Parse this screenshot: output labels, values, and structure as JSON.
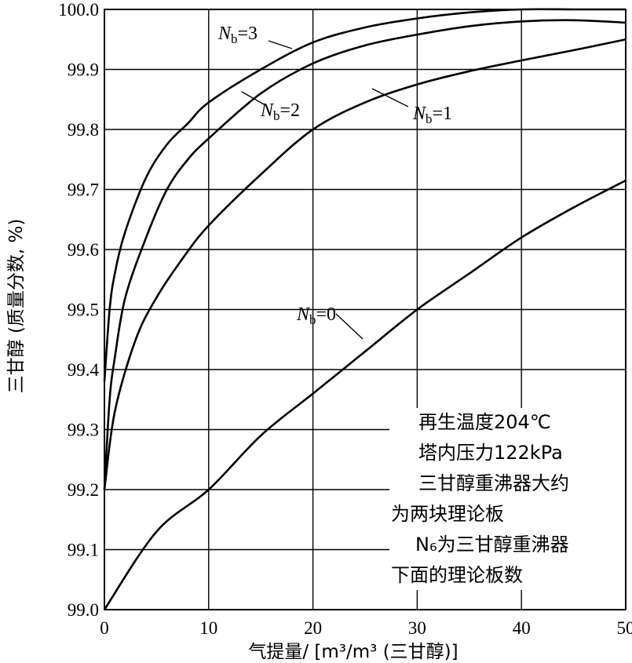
{
  "chart_data": {
    "type": "line",
    "title": "",
    "xlabel": "气提量/ [m³/m³ (三甘醇)]",
    "ylabel": "三甘醇 (质量分数, %)",
    "xlim": [
      0,
      50
    ],
    "ylim": [
      99.0,
      100.0
    ],
    "x_ticks": [
      "0",
      "10",
      "20",
      "30",
      "40",
      "50"
    ],
    "y_ticks": [
      "99.0",
      "99.1",
      "99.2",
      "99.3",
      "99.4",
      "99.5",
      "99.6",
      "99.7",
      "99.8",
      "99.9",
      "100.0"
    ],
    "grid": true,
    "series": [
      {
        "name": "Nb=0",
        "label_main": "N",
        "label_sub": "b",
        "label_rest": "=0",
        "points": [
          [
            0,
            99.0
          ],
          [
            5,
            99.13
          ],
          [
            10,
            99.2
          ],
          [
            15,
            99.29
          ],
          [
            20,
            99.36
          ],
          [
            25,
            99.43
          ],
          [
            30,
            99.5
          ],
          [
            35,
            99.56
          ],
          [
            40,
            99.62
          ],
          [
            45,
            99.67
          ],
          [
            50,
            99.715
          ]
        ]
      },
      {
        "name": "Nb=1",
        "label_main": "N",
        "label_sub": "b",
        "label_rest": "=1",
        "points": [
          [
            0,
            99.2
          ],
          [
            1,
            99.33
          ],
          [
            3,
            99.45
          ],
          [
            5,
            99.52
          ],
          [
            7.5,
            99.585
          ],
          [
            10,
            99.64
          ],
          [
            15,
            99.725
          ],
          [
            20,
            99.8
          ],
          [
            25,
            99.845
          ],
          [
            30,
            99.875
          ],
          [
            35,
            99.897
          ],
          [
            40,
            99.915
          ],
          [
            45,
            99.932
          ],
          [
            50,
            99.95
          ]
        ]
      },
      {
        "name": "Nb=2",
        "label_main": "N",
        "label_sub": "b",
        "label_rest": "=2",
        "points": [
          [
            0,
            99.2
          ],
          [
            0.5,
            99.35
          ],
          [
            1,
            99.42
          ],
          [
            2,
            99.52
          ],
          [
            4,
            99.62
          ],
          [
            6,
            99.7
          ],
          [
            8,
            99.75
          ],
          [
            10,
            99.785
          ],
          [
            15,
            99.86
          ],
          [
            20,
            99.91
          ],
          [
            25,
            99.94
          ],
          [
            30,
            99.958
          ],
          [
            35,
            99.972
          ],
          [
            40,
            99.98
          ],
          [
            45,
            99.982
          ],
          [
            50,
            99.978
          ]
        ]
      },
      {
        "name": "Nb=3",
        "label_main": "N",
        "label_sub": "b",
        "label_rest": "=3",
        "points": [
          [
            0,
            99.38
          ],
          [
            0.5,
            99.5
          ],
          [
            1,
            99.56
          ],
          [
            2,
            99.63
          ],
          [
            4,
            99.72
          ],
          [
            6,
            99.775
          ],
          [
            8,
            99.81
          ],
          [
            10,
            99.845
          ],
          [
            15,
            99.9
          ],
          [
            20,
            99.945
          ],
          [
            25,
            99.97
          ],
          [
            30,
            99.985
          ],
          [
            35,
            99.995
          ],
          [
            40,
            100.0
          ],
          [
            45,
            100.0
          ],
          [
            50,
            100.0
          ]
        ]
      }
    ],
    "annotations": [
      "再生温度204℃",
      "塔内压力122kPa",
      "三甘醇重沸器大约",
      "为两块理论板",
      "N₆为三甘醇重沸器",
      "下面的理论板数"
    ]
  }
}
